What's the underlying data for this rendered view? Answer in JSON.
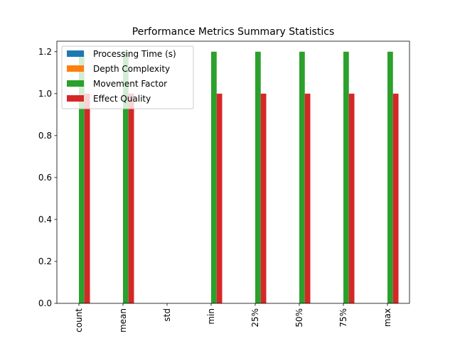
{
  "chart_data": {
    "type": "bar",
    "title": "Performance Metrics Summary Statistics",
    "xlabel": "",
    "ylabel": "",
    "categories": [
      "count",
      "mean",
      "std",
      "min",
      "25%",
      "50%",
      "75%",
      "max"
    ],
    "ylim": [
      0,
      1.25
    ],
    "yticks": [
      "0.0",
      "0.2",
      "0.4",
      "0.6",
      "0.8",
      "1.0",
      "1.2"
    ],
    "legend_position": "top-left",
    "grid": false,
    "series": [
      {
        "name": "Processing Time (s)",
        "color": "#1f77b4",
        "values": [
          0,
          0,
          0,
          0,
          0,
          0,
          0,
          0
        ]
      },
      {
        "name": "Depth Complexity",
        "color": "#ff7f0e",
        "values": [
          0,
          0,
          0,
          0,
          0,
          0,
          0,
          0
        ]
      },
      {
        "name": "Movement Factor",
        "color": "#2ca02c",
        "values": [
          1.2,
          1.2,
          0,
          1.2,
          1.2,
          1.2,
          1.2,
          1.2
        ]
      },
      {
        "name": "Effect Quality",
        "color": "#d62728",
        "values": [
          1.0,
          1.0,
          0,
          1.0,
          1.0,
          1.0,
          1.0,
          1.0
        ]
      }
    ]
  }
}
